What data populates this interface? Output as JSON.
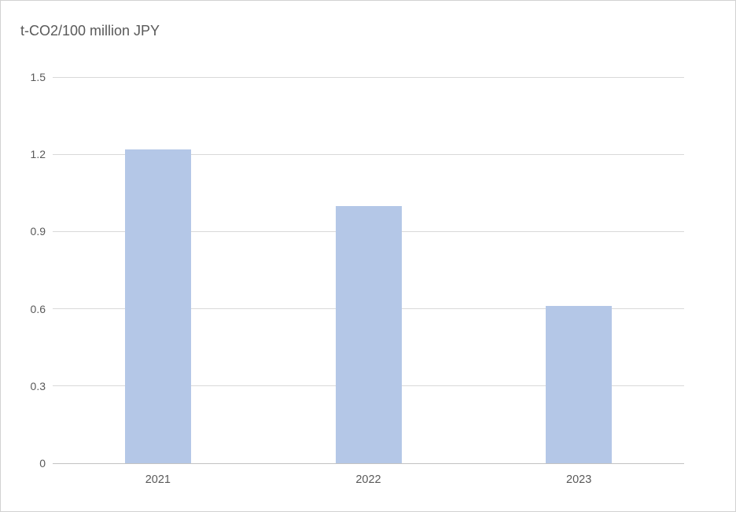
{
  "chart_data": {
    "type": "bar",
    "title": "t-CO2/100 million JPY",
    "categories": [
      "2021",
      "2022",
      "2023"
    ],
    "values": [
      1.22,
      1.0,
      0.61
    ],
    "xlabel": "",
    "ylabel": "",
    "ylim": [
      0,
      1.5
    ],
    "yticks": [
      {
        "value": 0,
        "label": "0"
      },
      {
        "value": 0.3,
        "label": "0.3"
      },
      {
        "value": 0.6,
        "label": "0.6"
      },
      {
        "value": 0.9,
        "label": "0.9"
      },
      {
        "value": 1.2,
        "label": "1.2"
      },
      {
        "value": 1.5,
        "label": "1.5"
      }
    ],
    "grid": true,
    "legend": false,
    "colors": {
      "bar_fill": "#b4c7e7",
      "text": "#595959",
      "gridline": "#d9d9d9",
      "axis_line": "#c3c3c3",
      "frame_border": "#d2d2d2"
    }
  }
}
